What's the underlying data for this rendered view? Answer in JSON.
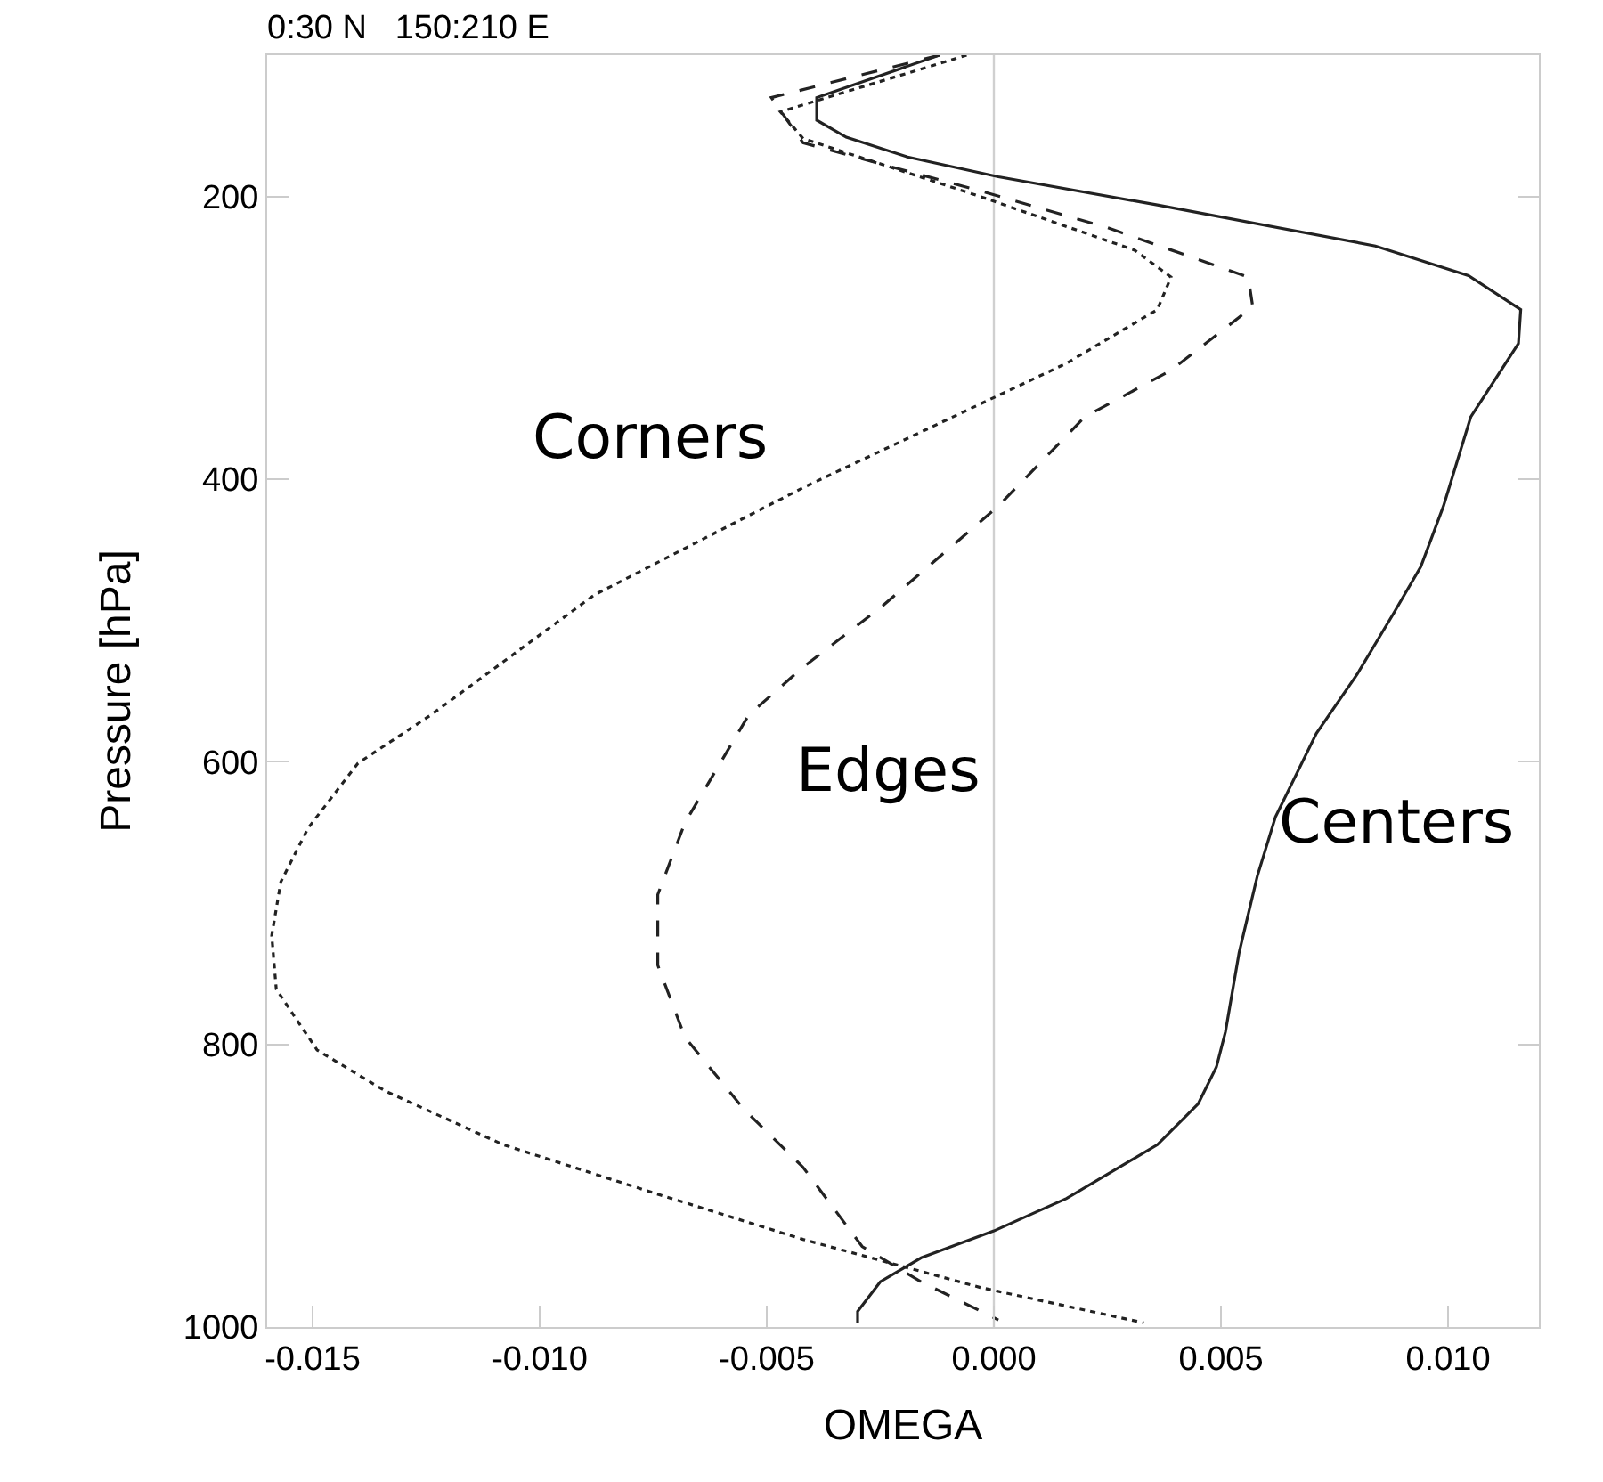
{
  "chart_data": {
    "type": "line",
    "title": "0:30 N   150:210 E",
    "xlabel": "OMEGA",
    "ylabel": "Pressure [hPa]",
    "xlim": [
      -0.016,
      0.012
    ],
    "xticks": [
      {
        "value": -0.015,
        "label": "-0.015"
      },
      {
        "value": -0.01,
        "label": "-0.010"
      },
      {
        "value": -0.005,
        "label": "-0.005"
      },
      {
        "value": 0,
        "label": "0.000"
      },
      {
        "value": 0.005,
        "label": "0.005"
      },
      {
        "value": 0.01,
        "label": "0.010"
      }
    ],
    "ylim": [
      1000,
      100
    ],
    "yticks": [
      200,
      400,
      600,
      800,
      1000
    ],
    "grid": false,
    "legend": false,
    "marker": "none",
    "ref_lines": [
      {
        "axis": "x",
        "value": 0,
        "color": "#d0d0d0"
      }
    ],
    "series": [
      {
        "name": "Centers",
        "color": "#222222",
        "line_style": "solid",
        "values": [
          100,
          130,
          146,
          158,
          172,
          186,
          206,
          235,
          256,
          280,
          304,
          356,
          419,
          462,
          495,
          538,
          580,
          639,
          681,
          735,
          791,
          816,
          842,
          871,
          909,
          932,
          951,
          968,
          989,
          997
        ],
        "x": [
          -0.0012,
          -0.0039,
          -0.0039,
          -0.00325,
          -0.0019,
          0.0001,
          0.0036,
          0.0084,
          0.01045,
          0.0116,
          0.01155,
          0.0105,
          0.0099,
          0.0094,
          0.0088,
          0.008,
          0.0071,
          0.0062,
          0.0058,
          0.0054,
          0.0051,
          0.0049,
          0.0045,
          0.0036,
          0.0016,
          0.0,
          -0.0016,
          -0.0025,
          -0.003,
          -0.003
        ]
      },
      {
        "name": "Edges",
        "color": "#222222",
        "line_style": "dashed",
        "values": [
          100,
          130,
          162,
          196,
          222,
          257,
          278,
          323,
          356,
          419,
          491,
          533,
          567,
          643,
          694,
          744,
          795,
          846,
          887,
          943,
          968,
          995
        ],
        "x": [
          -0.0012,
          -0.0049,
          -0.0042,
          -0.0003,
          0.0025,
          0.0056,
          0.0057,
          0.0039,
          0.002,
          0.0001,
          -0.0025,
          -0.0042,
          -0.0054,
          -0.0068,
          -0.0074,
          -0.0074,
          -0.0068,
          -0.0055,
          -0.0042,
          -0.0029,
          -0.0016,
          0.0001
        ]
      },
      {
        "name": "Corners",
        "color": "#222222",
        "line_style": "dotted",
        "values": [
          100,
          140,
          159,
          200,
          238,
          257,
          280,
          318,
          406,
          482,
          567,
          601,
          647,
          685,
          723,
          761,
          804,
          833,
          871,
          905,
          938,
          972,
          997
        ],
        "x": [
          -0.0006,
          -0.0047,
          -0.0042,
          -0.0003,
          0.0031,
          0.0039,
          0.0036,
          0.0016,
          -0.0042,
          -0.0088,
          -0.0124,
          -0.014,
          -0.0151,
          -0.0157,
          -0.0159,
          -0.0158,
          -0.0149,
          -0.0134,
          -0.0108,
          -0.0075,
          -0.0042,
          -0.0003,
          0.0033
        ]
      }
    ]
  }
}
